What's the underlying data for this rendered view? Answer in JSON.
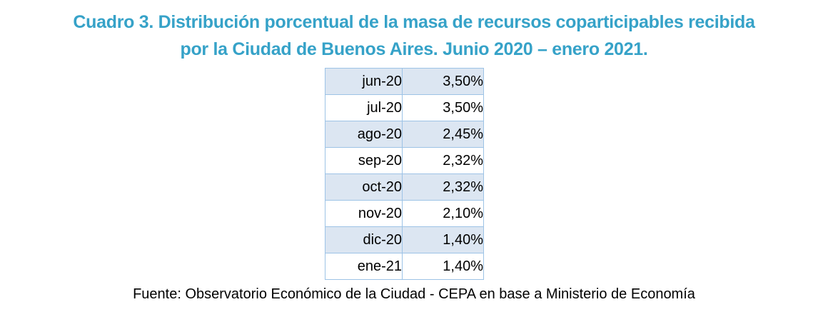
{
  "title": {
    "line1": "Cuadro 3. Distribución porcentual de la masa de recursos coparticipables recibida",
    "line2": "por la Ciudad de Buenos Aires. Junio 2020 – enero 2021.",
    "full_text": "Cuadro 3. Distribución porcentual de la masa de recursos coparticipables recibida por la Ciudad de Buenos Aires. Junio 2020 – enero 2021."
  },
  "table": {
    "rows": [
      {
        "month": "jun-20",
        "value": "3,50%"
      },
      {
        "month": "jul-20",
        "value": "3,50%"
      },
      {
        "month": "ago-20",
        "value": "2,45%"
      },
      {
        "month": "sep-20",
        "value": "2,32%"
      },
      {
        "month": "oct-20",
        "value": "2,32%"
      },
      {
        "month": "nov-20",
        "value": "2,10%"
      },
      {
        "month": "dic-20",
        "value": "1,40%"
      },
      {
        "month": "ene-21",
        "value": "1,40%"
      }
    ]
  },
  "source": {
    "text": "Fuente: Observatorio Económico de la Ciudad - CEPA en base a Ministerio de Economía"
  },
  "colors": {
    "accent": "#36A2C8",
    "alt_row": "#DCE6F2",
    "border": "#9DC3E6",
    "text": "#000000"
  },
  "chart_data": {
    "type": "table",
    "title": "Cuadro 3. Distribución porcentual de la masa de recursos coparticipables recibida por la Ciudad de Buenos Aires. Junio 2020 – enero 2021.",
    "categories": [
      "jun-20",
      "jul-20",
      "ago-20",
      "sep-20",
      "oct-20",
      "nov-20",
      "dic-20",
      "ene-21"
    ],
    "values_percent": [
      3.5,
      3.5,
      2.45,
      2.32,
      2.32,
      2.1,
      1.4,
      1.4
    ],
    "values_display": [
      "3,50%",
      "3,50%",
      "2,45%",
      "2,32%",
      "2,32%",
      "2,10%",
      "1,40%",
      "1,40%"
    ],
    "source": "Fuente: Observatorio Económico de la Ciudad - CEPA en base a Ministerio de Economía",
    "layout": {
      "striped_rows": true,
      "first_row_shaded": true,
      "text_align": "right",
      "headers": false
    }
  }
}
